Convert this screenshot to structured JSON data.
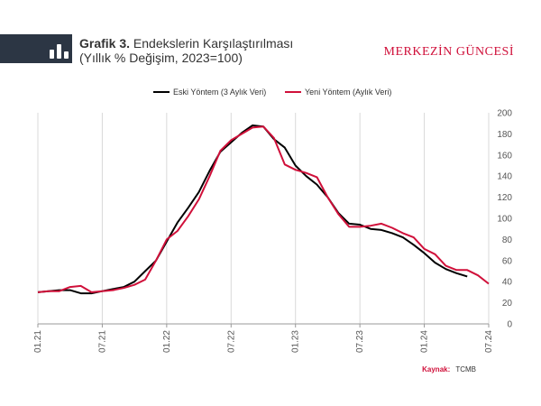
{
  "header": {
    "title_bold": "Grafik 3.",
    "title_rest": "Endekslerin Karşılaştırılması",
    "subtitle": "(Yıllık % Değişim, 2023=100)",
    "brand": "MERKEZİN GÜNCESİ"
  },
  "source": {
    "label": "Kaynak:",
    "value": "TCMB"
  },
  "colors": {
    "old": "#000000",
    "new": "#d0103a",
    "header_bg": "#2c3644",
    "grid": "#d9d9d9"
  },
  "chart_data": {
    "type": "line",
    "title": "",
    "xlabel": "",
    "ylabel": "",
    "ylim": [
      0,
      200
    ],
    "yticks": [
      0,
      20,
      40,
      60,
      80,
      100,
      120,
      140,
      160,
      180,
      200
    ],
    "x_range": [
      "2021-01",
      "2024-07"
    ],
    "xtick_labels": [
      "01.21",
      "07.21",
      "01.22",
      "07.22",
      "01.23",
      "07.23",
      "01.24",
      "07.24"
    ],
    "legend_position": "top",
    "grid": "vertical",
    "series": [
      {
        "name": "Eski Yöntem (3 Aylık Veri)",
        "color": "#000000",
        "points": [
          [
            "2021-01",
            30
          ],
          [
            "2021-02",
            31
          ],
          [
            "2021-03",
            32
          ],
          [
            "2021-04",
            32
          ],
          [
            "2021-05",
            29
          ],
          [
            "2021-06",
            29
          ],
          [
            "2021-07",
            31
          ],
          [
            "2021-08",
            33
          ],
          [
            "2021-09",
            35
          ],
          [
            "2021-10",
            40
          ],
          [
            "2021-11",
            50
          ],
          [
            "2021-12",
            60
          ],
          [
            "2022-01",
            78
          ],
          [
            "2022-02",
            96
          ],
          [
            "2022-03",
            110
          ],
          [
            "2022-04",
            125
          ],
          [
            "2022-05",
            145
          ],
          [
            "2022-06",
            163
          ],
          [
            "2022-07",
            172
          ],
          [
            "2022-08",
            181
          ],
          [
            "2022-09",
            188
          ],
          [
            "2022-10",
            187
          ],
          [
            "2022-11",
            175
          ],
          [
            "2022-12",
            167
          ],
          [
            "2023-01",
            150
          ],
          [
            "2023-02",
            140
          ],
          [
            "2023-03",
            132
          ],
          [
            "2023-04",
            120
          ],
          [
            "2023-05",
            105
          ],
          [
            "2023-06",
            95
          ],
          [
            "2023-07",
            94
          ],
          [
            "2023-08",
            90
          ],
          [
            "2023-09",
            89
          ],
          [
            "2023-10",
            86
          ],
          [
            "2023-11",
            82
          ],
          [
            "2023-12",
            75
          ],
          [
            "2024-01",
            67
          ],
          [
            "2024-02",
            58
          ],
          [
            "2024-03",
            52
          ],
          [
            "2024-04",
            48
          ],
          [
            "2024-05",
            45
          ]
        ]
      },
      {
        "name": "Yeni Yöntem (Aylık Veri)",
        "color": "#d0103a",
        "points": [
          [
            "2021-01",
            30
          ],
          [
            "2021-02",
            31
          ],
          [
            "2021-03",
            31
          ],
          [
            "2021-04",
            35
          ],
          [
            "2021-05",
            36
          ],
          [
            "2021-06",
            30
          ],
          [
            "2021-07",
            31
          ],
          [
            "2021-08",
            32
          ],
          [
            "2021-09",
            34
          ],
          [
            "2021-10",
            37
          ],
          [
            "2021-11",
            42
          ],
          [
            "2021-12",
            60
          ],
          [
            "2022-01",
            80
          ],
          [
            "2022-02",
            88
          ],
          [
            "2022-03",
            102
          ],
          [
            "2022-04",
            118
          ],
          [
            "2022-05",
            140
          ],
          [
            "2022-06",
            164
          ],
          [
            "2022-07",
            174
          ],
          [
            "2022-08",
            180
          ],
          [
            "2022-09",
            186
          ],
          [
            "2022-10",
            187
          ],
          [
            "2022-11",
            176
          ],
          [
            "2022-12",
            151
          ],
          [
            "2023-01",
            146
          ],
          [
            "2023-02",
            143
          ],
          [
            "2023-03",
            139
          ],
          [
            "2023-04",
            120
          ],
          [
            "2023-05",
            104
          ],
          [
            "2023-06",
            92
          ],
          [
            "2023-07",
            92
          ],
          [
            "2023-08",
            93
          ],
          [
            "2023-09",
            95
          ],
          [
            "2023-10",
            91
          ],
          [
            "2023-11",
            86
          ],
          [
            "2023-12",
            82
          ],
          [
            "2024-01",
            71
          ],
          [
            "2024-02",
            66
          ],
          [
            "2024-03",
            55
          ],
          [
            "2024-04",
            51
          ],
          [
            "2024-05",
            51
          ],
          [
            "2024-06",
            46
          ],
          [
            "2024-07",
            38
          ]
        ]
      }
    ]
  }
}
